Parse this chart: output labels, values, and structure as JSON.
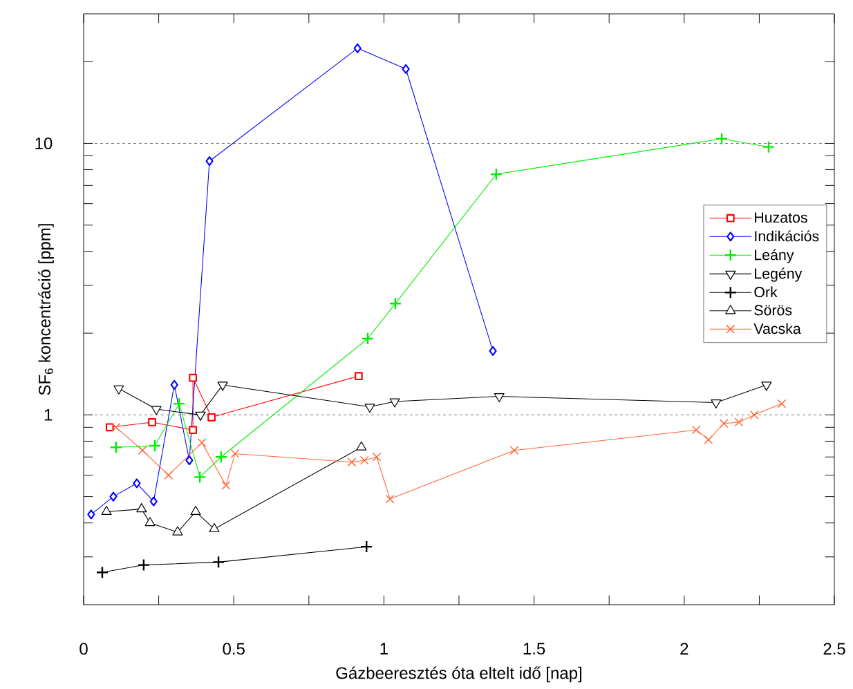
{
  "chart_data": {
    "type": "line",
    "xlabel": "Gázbeeresztés óta eltelt idő [nap]",
    "ylabel": "SF$_{6}$ koncentráció [ppm]",
    "log": "y",
    "grid": "y",
    "legend": "right",
    "xlim": [
      0,
      2.5
    ],
    "ylim": [
      0.2,
      30
    ],
    "xticks": [
      0,
      {
        "value": 0.25,
        "label": null
      },
      0.5,
      {
        "value": 0.75,
        "label": null
      },
      1,
      {
        "value": 1.25,
        "label": null
      },
      1.5,
      {
        "value": 1.75,
        "label": null
      },
      2,
      {
        "value": 2.25,
        "label": null
      },
      2.5
    ],
    "yticks": [
      {
        "value": 0.3,
        "label": null
      },
      {
        "value": 0.4,
        "label": null
      },
      {
        "value": 0.5,
        "label": null
      },
      {
        "value": 0.6,
        "label": null
      },
      {
        "value": 0.7,
        "label": null
      },
      {
        "value": 0.8,
        "label": null
      },
      {
        "value": 0.9,
        "label": null
      },
      1,
      {
        "value": 2,
        "label": null
      },
      {
        "value": 3,
        "label": null
      },
      {
        "value": 4,
        "label": null
      },
      {
        "value": 5,
        "label": null
      },
      {
        "value": 6,
        "label": null
      },
      {
        "value": 7,
        "label": null
      },
      {
        "value": 8,
        "label": null
      },
      {
        "value": 9,
        "label": null
      },
      10,
      {
        "value": 20,
        "label": null
      }
    ],
    "series": [
      {
        "name": "Huzatos",
        "color": "#ff0000",
        "marker": "square",
        "x": [
          0.087,
          0.228,
          0.364,
          0.364,
          0.426,
          0.916
        ],
        "values": [
          0.9,
          0.94,
          0.88,
          1.37,
          0.98,
          1.39
        ]
      },
      {
        "name": "Indikációs",
        "color": "#0000ff",
        "marker": "diamond",
        "x": [
          0.025,
          0.099,
          0.177,
          0.233,
          0.302,
          0.352,
          0.419,
          0.912,
          1.073,
          1.363
        ],
        "values": [
          0.43,
          0.5,
          0.56,
          0.48,
          1.29,
          0.68,
          8.6,
          22.4,
          18.8,
          1.72
        ]
      },
      {
        "name": "Leány",
        "color": "#00ee00",
        "marker": "plus",
        "x": [
          0.108,
          0.237,
          0.318,
          0.387,
          0.458,
          0.946,
          1.038,
          1.374,
          2.125,
          2.281
        ],
        "values": [
          0.76,
          0.77,
          1.1,
          0.59,
          0.7,
          1.91,
          2.57,
          7.7,
          10.4,
          9.7
        ]
      },
      {
        "name": "Legény",
        "color": "#000000",
        "marker": "triangle_down",
        "x": [
          0.117,
          0.242,
          0.389,
          0.463,
          0.953,
          1.036,
          1.384,
          2.106,
          2.274
        ],
        "values": [
          1.25,
          1.05,
          1.0,
          1.29,
          1.07,
          1.12,
          1.17,
          1.11,
          1.29
        ]
      },
      {
        "name": "Ork",
        "color": "#000000",
        "marker": "plus",
        "x": [
          0.062,
          0.2,
          0.449,
          0.942
        ],
        "values": [
          0.263,
          0.28,
          0.287,
          0.327
        ]
      },
      {
        "name": "Sörös",
        "color": "#000000",
        "marker": "triangle",
        "x": [
          0.076,
          0.193,
          0.221,
          0.313,
          0.373,
          0.435,
          0.925
        ],
        "values": [
          0.44,
          0.45,
          0.4,
          0.37,
          0.44,
          0.38,
          0.76
        ]
      },
      {
        "name": "Vacska",
        "color": "#ff6633",
        "marker": "cross",
        "x": [
          0.108,
          0.196,
          0.283,
          0.394,
          0.474,
          0.504,
          0.893,
          0.935,
          0.976,
          1.02,
          1.434,
          2.04,
          2.081,
          2.132,
          2.182,
          2.233,
          2.325
        ],
        "values": [
          0.9,
          0.74,
          0.6,
          0.79,
          0.55,
          0.72,
          0.67,
          0.68,
          0.7,
          0.49,
          0.74,
          0.88,
          0.81,
          0.93,
          0.94,
          1.0,
          1.1
        ]
      }
    ]
  }
}
